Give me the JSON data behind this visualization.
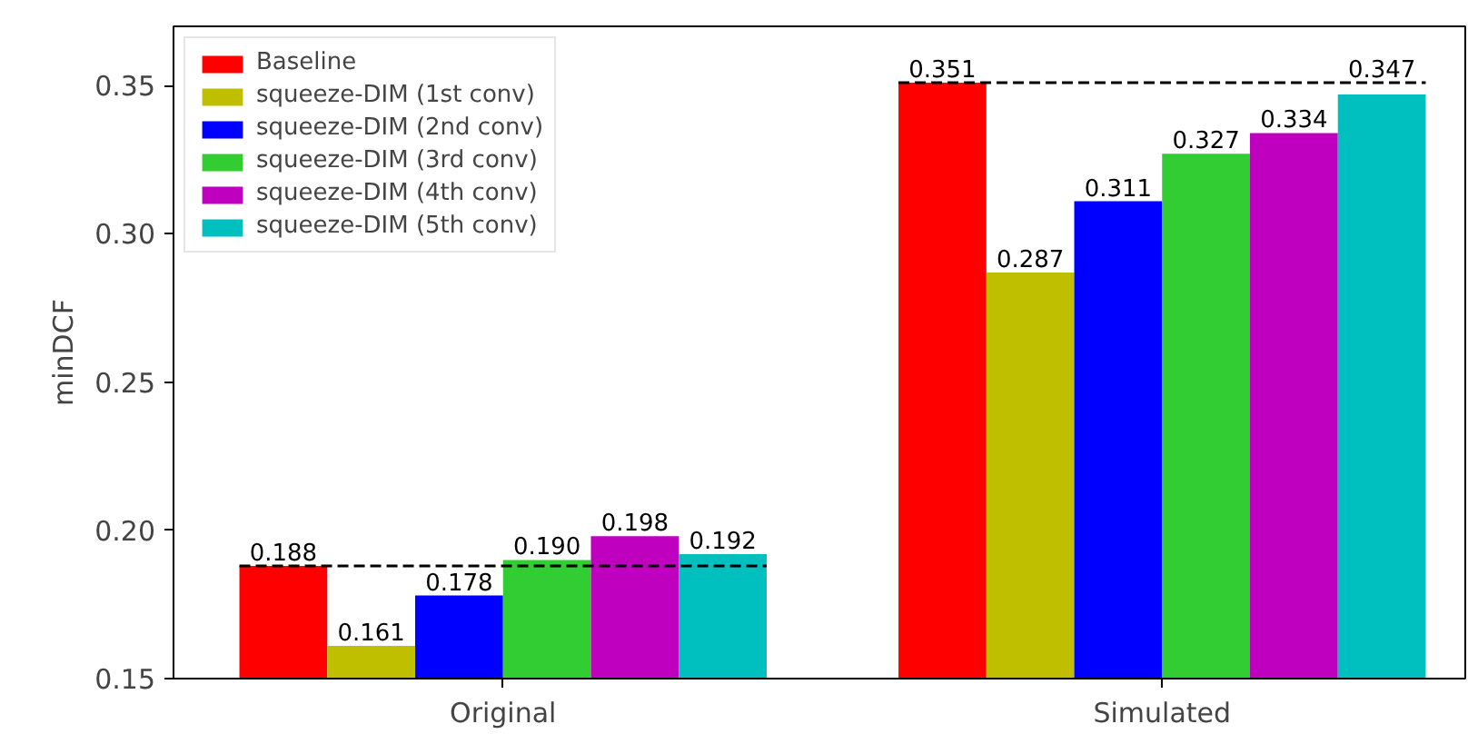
{
  "chart_data": {
    "type": "bar",
    "ylabel": "minDCF",
    "categories": [
      "Original",
      "Simulated"
    ],
    "series": [
      {
        "name": "Baseline",
        "color": "#ff0000",
        "values": [
          0.188,
          0.351
        ],
        "value_labels": [
          "0.188",
          "0.351"
        ]
      },
      {
        "name": "squeeze-DIM (1st conv)",
        "color": "#bfbf00",
        "values": [
          0.161,
          0.287
        ],
        "value_labels": [
          "0.161",
          "0.287"
        ]
      },
      {
        "name": "squeeze-DIM (2nd conv)",
        "color": "#0000ff",
        "values": [
          0.178,
          0.311
        ],
        "value_labels": [
          "0.178",
          "0.311"
        ]
      },
      {
        "name": "squeeze-DIM (3rd conv)",
        "color": "#32cd32",
        "values": [
          0.19,
          0.327
        ],
        "value_labels": [
          "0.190",
          "0.327"
        ]
      },
      {
        "name": "squeeze-DIM (4th conv)",
        "color": "#bf00bf",
        "values": [
          0.198,
          0.334
        ],
        "value_labels": [
          "0.198",
          "0.334"
        ]
      },
      {
        "name": "squeeze-DIM (5th conv)",
        "color": "#00bfbf",
        "values": [
          0.192,
          0.347
        ],
        "value_labels": [
          "0.192",
          "0.347"
        ]
      }
    ],
    "ylim": [
      0.15,
      0.37
    ],
    "yticks": [
      {
        "value": 0.15,
        "label": "0.15"
      },
      {
        "value": 0.2,
        "label": "0.20"
      },
      {
        "value": 0.25,
        "label": "0.25"
      },
      {
        "value": 0.3,
        "label": "0.30"
      },
      {
        "value": 0.35,
        "label": "0.35"
      }
    ],
    "ref_lines": [
      {
        "axis": "y",
        "value": 0.188,
        "line_style": "dashed",
        "color": "#000000"
      },
      {
        "axis": "y",
        "value": 0.351,
        "line_style": "dashed",
        "color": "#000000"
      }
    ],
    "legend": "top left",
    "grid": false
  }
}
